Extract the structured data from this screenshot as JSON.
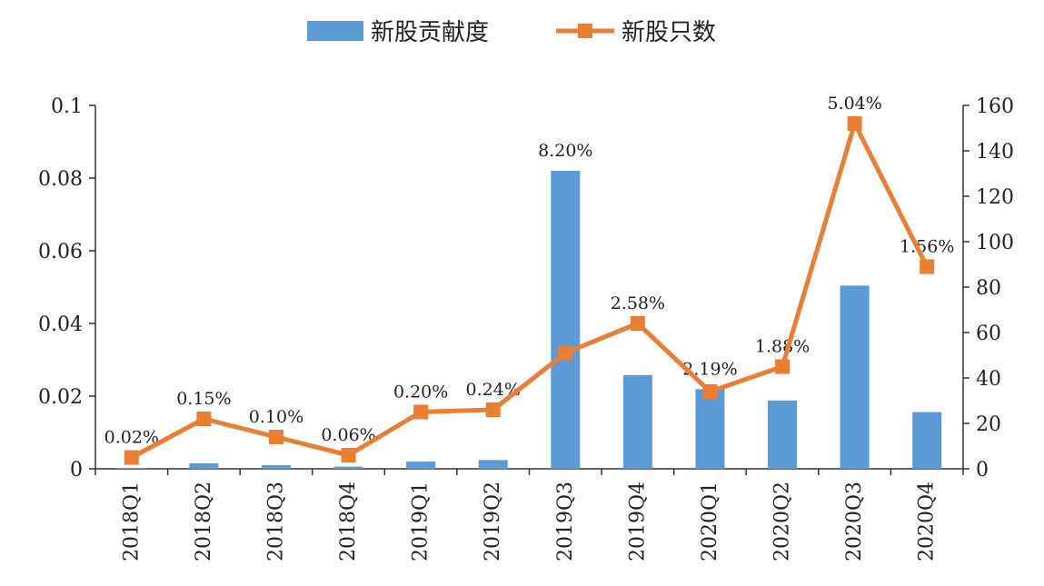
{
  "chart_data": {
    "type": "bar",
    "categories": [
      "2018Q1",
      "2018Q2",
      "2018Q3",
      "2018Q4",
      "2019Q1",
      "2019Q2",
      "2019Q3",
      "2019Q4",
      "2020Q1",
      "2020Q2",
      "2020Q3",
      "2020Q4"
    ],
    "series": [
      {
        "name": "新股贡献度",
        "type": "bar",
        "axis": "left",
        "color": "#5b9bd5",
        "values": [
          0.0002,
          0.0015,
          0.001,
          0.0006,
          0.002,
          0.0024,
          0.082,
          0.0258,
          0.0219,
          0.0188,
          0.0504,
          0.0156
        ],
        "data_labels": [
          "0.02%",
          "0.15%",
          "0.10%",
          "0.06%",
          "0.20%",
          "0.24%",
          "8.20%",
          "2.58%",
          "2.19%",
          "1.88%",
          "5.04%",
          "1.56%"
        ]
      },
      {
        "name": "新股只数",
        "type": "line",
        "axis": "right",
        "color": "#ed7d31",
        "values": [
          5,
          22,
          14,
          6,
          25,
          26,
          51,
          64,
          34,
          45,
          152,
          89
        ]
      }
    ],
    "y_left": {
      "min": 0,
      "max": 0.1,
      "ticks": [
        "0",
        "0.02",
        "0.04",
        "0.06",
        "0.08",
        "0.1"
      ]
    },
    "y_right": {
      "min": 0,
      "max": 160,
      "ticks": [
        "0",
        "20",
        "40",
        "60",
        "80",
        "100",
        "120",
        "140",
        "160"
      ]
    },
    "legend": "top-center",
    "grid": false
  }
}
